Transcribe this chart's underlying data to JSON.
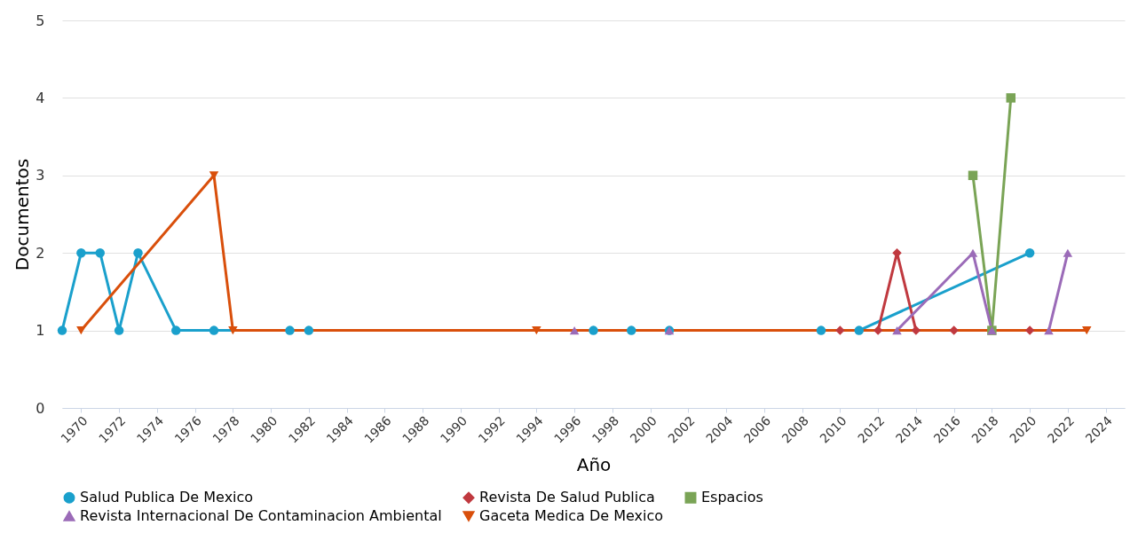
{
  "chart_data": {
    "type": "line",
    "xlabel": "Año",
    "ylabel": "Documentos",
    "xlim": [
      1969,
      2025
    ],
    "xticks": [
      1970,
      1972,
      1974,
      1976,
      1978,
      1980,
      1982,
      1984,
      1986,
      1988,
      1990,
      1992,
      1994,
      1996,
      1998,
      2000,
      2002,
      2004,
      2006,
      2008,
      2010,
      2012,
      2014,
      2016,
      2018,
      2020,
      2022,
      2024
    ],
    "ylim": [
      0,
      5
    ],
    "yticks": [
      0,
      1,
      2,
      3,
      4,
      5
    ],
    "grid": "y",
    "legend": "bottom",
    "series": [
      {
        "name": "Salud Publica De Mexico",
        "color": "#1aa0cc",
        "marker": "circle",
        "x": [
          1969,
          1970,
          1971,
          1972,
          1973,
          1975,
          1977,
          1981,
          1982,
          1997,
          1999,
          2001,
          2009,
          2011,
          2020
        ],
        "values": [
          1,
          2,
          2,
          1,
          2,
          1,
          1,
          1,
          1,
          1,
          1,
          1,
          1,
          1,
          2
        ]
      },
      {
        "name": "Revista De Salud Publica",
        "color": "#c0393f",
        "marker": "diamond",
        "x": [
          2010,
          2012,
          2013,
          2014,
          2016,
          2020
        ],
        "values": [
          1,
          1,
          2,
          1,
          1,
          1
        ]
      },
      {
        "name": "Espacios",
        "color": "#7aa456",
        "marker": "square",
        "x": [
          2017,
          2018,
          2019
        ],
        "values": [
          3,
          1,
          4
        ]
      },
      {
        "name": "Revista Internacional De Contaminacion Ambiental",
        "color": "#9b6bb8",
        "marker": "triangle",
        "x": [
          1996,
          2001,
          2013,
          2017,
          2018,
          2021,
          2022
        ],
        "values": [
          1,
          1,
          1,
          2,
          1,
          1,
          2
        ]
      },
      {
        "name": "Gaceta Medica De Mexico",
        "color": "#d94f0b",
        "marker": "triangle-down",
        "x": [
          1970,
          1977,
          1978,
          1994,
          2023
        ],
        "values": [
          1,
          3,
          1,
          1,
          1
        ]
      }
    ]
  }
}
